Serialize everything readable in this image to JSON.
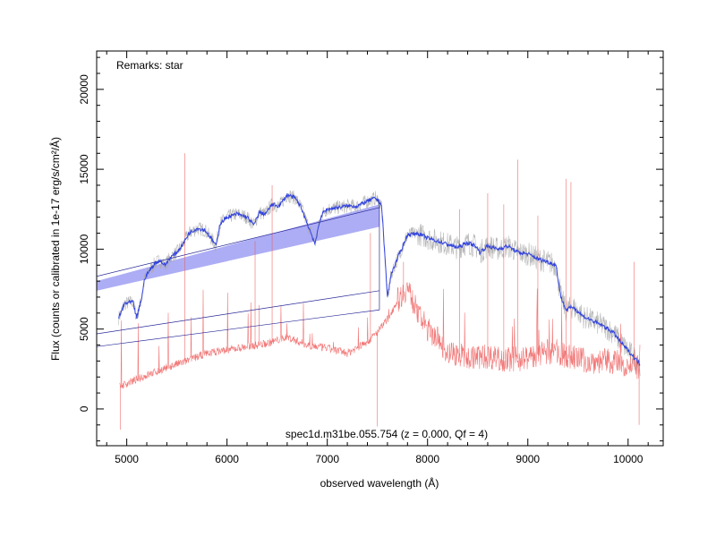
{
  "chart_data": {
    "type": "line",
    "remark": "Remarks: star",
    "caption": "spec1d.m31be.055.754 (z = 0.000, Qf = 4)",
    "xlabel": "observed wavelength (Å)",
    "ylabel": "Flux (counts or calibrated in 1e-17 erg/s/cm²/Å)",
    "xlim": [
      4700,
      10350
    ],
    "ylim": [
      -2300,
      22400
    ],
    "xticks": [
      5000,
      6000,
      7000,
      8000,
      9000,
      10000
    ],
    "yticks": [
      0,
      5000,
      10000,
      15000,
      20000
    ],
    "grid": false,
    "colors": {
      "raw": "#aaaaaa",
      "smoothed": "#3344dd",
      "error": "#ee5555",
      "band": "#7777ee"
    },
    "series": [
      {
        "key": "smoothed",
        "x": [
          4920,
          4980,
          5060,
          5100,
          5150,
          5180,
          5230,
          5280,
          5330,
          5380,
          5440,
          5500,
          5570,
          5620,
          5700,
          5780,
          5850,
          5890,
          5930,
          6000,
          6100,
          6200,
          6270,
          6320,
          6380,
          6450,
          6520,
          6600,
          6680,
          6740,
          6800,
          6850,
          6880,
          6920,
          6960,
          7000,
          7100,
          7200,
          7300,
          7400,
          7480,
          7540,
          7560,
          7600,
          7640,
          7700,
          7800,
          7900,
          8000,
          8100,
          8200,
          8300,
          8400,
          8480,
          8520,
          8600,
          8700,
          8800,
          8900,
          9000,
          9100,
          9200,
          9280,
          9330,
          9380,
          9450,
          9550,
          9650,
          9750,
          9850,
          9950,
          10050,
          10120
        ],
        "y": [
          5700,
          6600,
          6700,
          5700,
          7000,
          8200,
          8700,
          9100,
          9300,
          9000,
          9500,
          9800,
          10400,
          11000,
          11300,
          11200,
          10600,
          10200,
          11600,
          12000,
          12200,
          12000,
          11500,
          12300,
          12200,
          12800,
          12700,
          13400,
          13200,
          12600,
          11600,
          10800,
          10300,
          11700,
          12300,
          12500,
          12600,
          12700,
          12700,
          13000,
          13200,
          12800,
          11000,
          7000,
          8500,
          9400,
          10900,
          11000,
          10700,
          10500,
          10300,
          10100,
          10400,
          10200,
          9800,
          10200,
          10000,
          10200,
          9800,
          9700,
          9400,
          9200,
          9000,
          7000,
          6200,
          6400,
          5800,
          5500,
          5200,
          4800,
          4000,
          3300,
          2800
        ]
      },
      {
        "key": "error",
        "x": [
          4930,
          5000,
          5200,
          5400,
          5600,
          5800,
          6000,
          6200,
          6400,
          6600,
          6800,
          7000,
          7200,
          7400,
          7500,
          7600,
          7700,
          7800,
          7900,
          8000,
          8100,
          8200,
          8400,
          8600,
          8800,
          9000,
          9200,
          9400,
          9600,
          9800,
          10000,
          10120
        ],
        "y": [
          1400,
          1600,
          2100,
          2600,
          3000,
          3500,
          3700,
          3900,
          4100,
          4500,
          4000,
          3800,
          3500,
          4200,
          4800,
          5600,
          6800,
          7600,
          6000,
          5000,
          4400,
          3600,
          3200,
          3300,
          3100,
          3200,
          3600,
          3300,
          3000,
          3000,
          2800,
          2500
        ]
      }
    ],
    "error_spikes": [
      {
        "x": 4935,
        "y": -1300
      },
      {
        "x": 5580,
        "y": 16000
      },
      {
        "x": 6280,
        "y": 10500
      },
      {
        "x": 6320,
        "y": 6500
      },
      {
        "x": 6450,
        "y": 14000
      },
      {
        "x": 7430,
        "y": 11000
      },
      {
        "x": 7500,
        "y": -1100
      },
      {
        "x": 7760,
        "y": 9200
      },
      {
        "x": 8320,
        "y": 12500
      },
      {
        "x": 8600,
        "y": 13500
      },
      {
        "x": 8760,
        "y": 12800
      },
      {
        "x": 8900,
        "y": 15600
      },
      {
        "x": 9100,
        "y": 12100
      },
      {
        "x": 9380,
        "y": 14400
      },
      {
        "x": 9430,
        "y": 14200
      },
      {
        "x": 10060,
        "y": 9200
      },
      {
        "x": 10110,
        "y": -1000
      }
    ],
    "band": {
      "start": {
        "x": 4700,
        "y_top": 8000,
        "y_bottom": 7400
      },
      "end": {
        "x": 7520,
        "y_top": 12800,
        "y_bottom": 11400
      }
    },
    "guide_lines": [
      {
        "x1": 4700,
        "y1": 8300,
        "x2": 7520,
        "y2": 12600
      },
      {
        "x1": 4700,
        "y1": 4700,
        "x2": 7520,
        "y2": 7400
      },
      {
        "x1": 4700,
        "y1": 3900,
        "x2": 7520,
        "y2": 6200
      },
      {
        "x1": 7520,
        "y1": 6200,
        "x2": 7520,
        "y2": 13100
      }
    ]
  }
}
